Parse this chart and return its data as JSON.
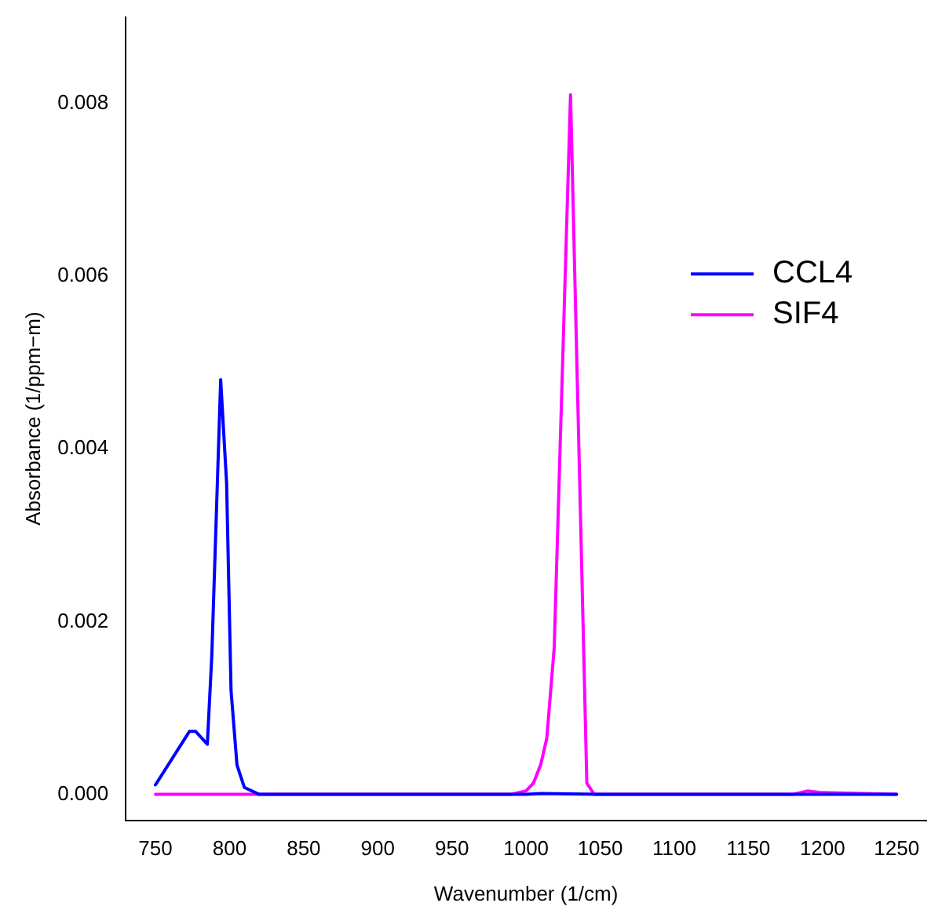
{
  "chart_data": {
    "type": "line",
    "xlabel": "Wavenumber (1/cm)",
    "ylabel": "Absorbance (1/ppm−m)",
    "xlim": [
      730,
      1270
    ],
    "xticks": [
      750,
      800,
      850,
      900,
      950,
      1000,
      1050,
      1100,
      1150,
      1200,
      1250
    ],
    "ylim": [
      -0.0003,
      0.009
    ],
    "yticks": [
      {
        "value": 0,
        "label": "0.000"
      },
      {
        "value": 0.002,
        "label": "0.002"
      },
      {
        "value": 0.004,
        "label": "0.004"
      },
      {
        "value": 0.006,
        "label": "0.006"
      },
      {
        "value": 0.008,
        "label": "0.008"
      }
    ],
    "grid": false,
    "legend": "right",
    "marker": "none",
    "line_style": "solid",
    "series": [
      {
        "name": "CCL4",
        "color": "#0000ff",
        "x": [
          750,
          773,
          777,
          785,
          788,
          794,
          798,
          801,
          805,
          810,
          820,
          1000,
          1010,
          1050,
          1250
        ],
        "values": [
          0.00011,
          0.00073,
          0.00073,
          0.00058,
          0.0016,
          0.0048,
          0.0036,
          0.0012,
          0.00034,
          8e-05,
          0,
          0,
          1e-05,
          0,
          0
        ]
      },
      {
        "name": "SIF4",
        "color": "#ff00ff",
        "x": [
          750,
          990,
          1000,
          1005,
          1010,
          1014,
          1019,
          1030,
          1041,
          1046,
          1180,
          1190,
          1200,
          1250
        ],
        "values": [
          0,
          0,
          4e-05,
          0.00013,
          0.00035,
          0.00065,
          0.0017,
          0.0081,
          0.00013,
          0,
          0,
          4e-05,
          2e-05,
          0
        ]
      }
    ]
  }
}
